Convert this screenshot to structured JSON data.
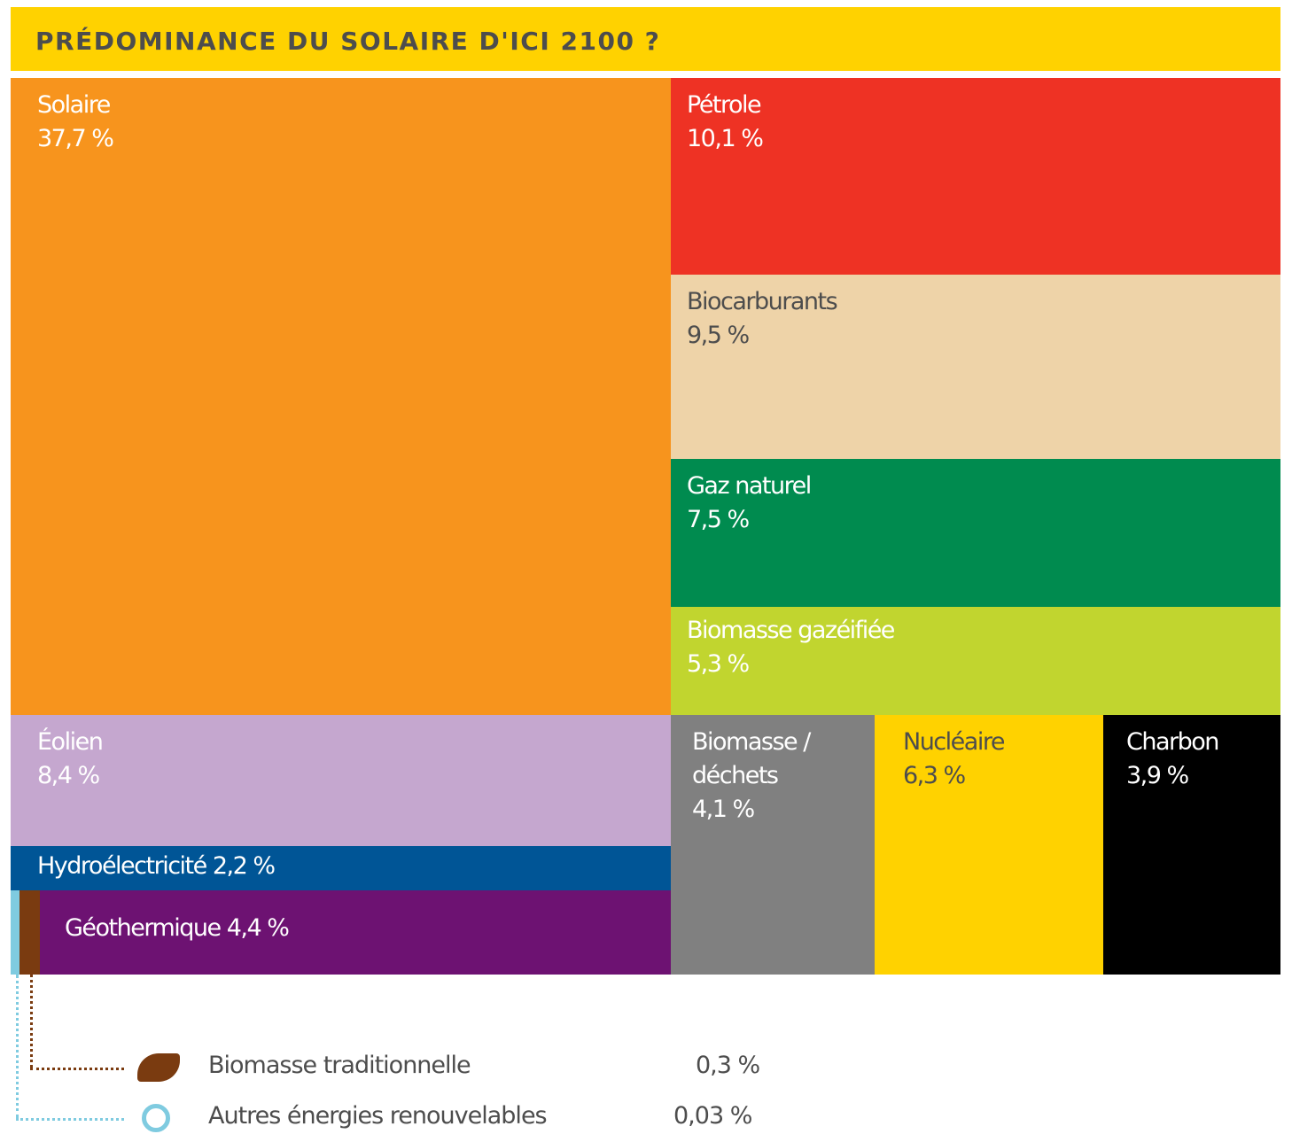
{
  "chart_data": {
    "type": "treemap",
    "title": "PRÉDOMINANCE DU SOLAIRE D'ICI 2100 ?",
    "categories": [
      "Solaire",
      "Pétrole",
      "Biocarburants",
      "Gaz naturel",
      "Biomasse gazéifiée",
      "Éolien",
      "Hydroélectricité",
      "Géothermique",
      "Biomasse / déchets",
      "Nucléaire",
      "Charbon",
      "Biomasse traditionnelle",
      "Autres énergies renouvelables"
    ],
    "values": [
      37.7,
      10.1,
      9.5,
      7.5,
      5.3,
      8.4,
      2.2,
      4.4,
      4.1,
      6.3,
      3.9,
      0.3,
      0.03
    ],
    "value_labels": [
      "37,7 %",
      "10,1 %",
      "9,5 %",
      "7,5 %",
      "5,3 %",
      "8,4 %",
      "2,2 %",
      "4,4 %",
      "4,1 %",
      "6,3 %",
      "3,9 %",
      "0,3 %",
      "0,03 %"
    ],
    "colors": [
      "#f7941d",
      "#ee3224",
      "#eed3a8",
      "#008b4f",
      "#c1d52f",
      "#c5a7cf",
      "#005596",
      "#6d1272",
      "#808080",
      "#ffd200",
      "#000000",
      "#7a3b10",
      "#7fcbe0"
    ]
  }
}
